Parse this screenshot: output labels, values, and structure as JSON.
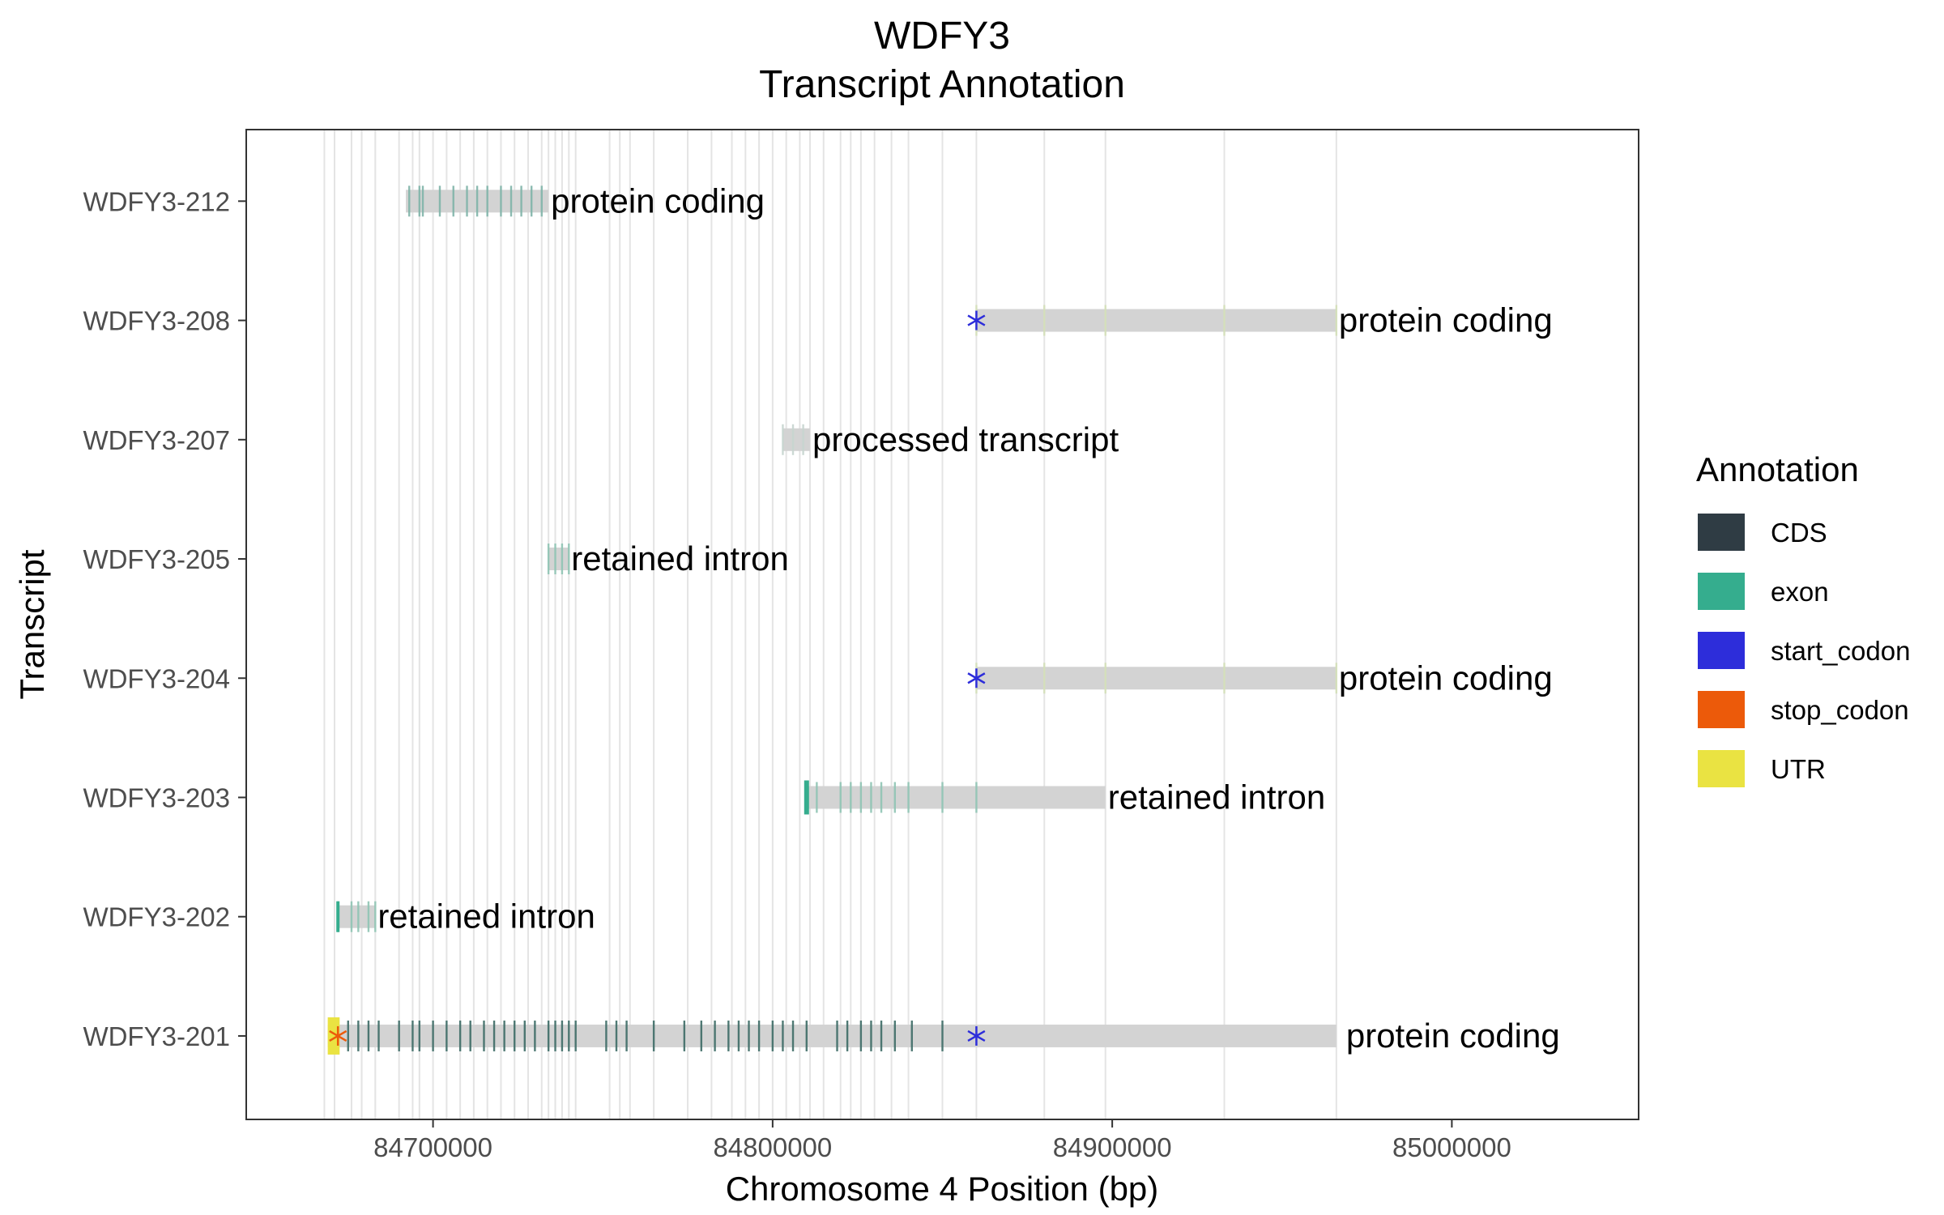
{
  "chart_data": {
    "type": "gene-track",
    "title": "WDFY3",
    "subtitle": "Transcript Annotation",
    "xlabel": "Chromosome 4 Position (bp)",
    "ylabel": "Transcript",
    "xlim": [
      84645000,
      85055000
    ],
    "xticks": [
      84700000,
      84800000,
      84900000,
      85000000
    ],
    "grid": "major-only",
    "legend": {
      "title": "Annotation",
      "placement": "right",
      "items": [
        {
          "label": "CDS",
          "color": "#2f3c44"
        },
        {
          "label": "exon",
          "color": "#35ad8e"
        },
        {
          "label": "start_codon",
          "color": "#2d2dda"
        },
        {
          "label": "stop_codon",
          "color": "#ec5a0a"
        },
        {
          "label": "UTR",
          "color": "#eae342"
        }
      ]
    },
    "background_exon_positions": [
      84668000,
      84671000,
      84676000,
      84679000,
      84683000,
      84690000,
      84694000,
      84696000,
      84700000,
      84704000,
      84708000,
      84712000,
      84716000,
      84720000,
      84724000,
      84728000,
      84732000,
      84734000,
      84736000,
      84738000,
      84740000,
      84742000,
      84752000,
      84755000,
      84758000,
      84765000,
      84775000,
      84782000,
      84788000,
      84792000,
      84796000,
      84800000,
      84804000,
      84808000,
      84811000,
      84815000,
      84820000,
      84823000,
      84826000,
      84830000,
      84835000,
      84840000,
      84850000,
      84860000,
      84880000,
      84898000,
      84933000,
      84966000
    ],
    "transcripts": [
      {
        "name": "WDFY3-212",
        "biotype": "protein coding",
        "start": 84692000,
        "end": 84734000,
        "exons": [
          84693000,
          84696000,
          84697000,
          84702000,
          84706000,
          84710000,
          84713000,
          84716000,
          84720000,
          84723000,
          84726000,
          84729000,
          84732000
        ],
        "exon_color": "#7fb4a8",
        "start_codon": null,
        "stop_codon": null,
        "utr": []
      },
      {
        "name": "WDFY3-208",
        "biotype": "protein coding",
        "start": 84860000,
        "end": 84966000,
        "exons": [
          84860000,
          84880000,
          84898000,
          84933000,
          84966000
        ],
        "exon_color": "#d4e0b8",
        "start_codon": 84860000,
        "stop_codon": null,
        "utr": []
      },
      {
        "name": "WDFY3-207",
        "biotype": "processed transcript",
        "start": 84803000,
        "end": 84811000,
        "exons": [
          84803000,
          84806000,
          84809000
        ],
        "exon_color": "#c6d5cf",
        "start_codon": null,
        "stop_codon": null,
        "utr": []
      },
      {
        "name": "WDFY3-205",
        "biotype": "retained intron",
        "start": 84734000,
        "end": 84740000,
        "exons": [
          84734000,
          84736000,
          84738000,
          84740000
        ],
        "exon_color": "#8fc4b4",
        "start_codon": null,
        "stop_codon": null,
        "utr": []
      },
      {
        "name": "WDFY3-204",
        "biotype": "protein coding",
        "start": 84860000,
        "end": 84966000,
        "exons": [
          84860000,
          84880000,
          84898000,
          84933000,
          84966000
        ],
        "exon_color": "#d4e0b8",
        "start_codon": 84860000,
        "stop_codon": null,
        "utr": []
      },
      {
        "name": "WDFY3-203",
        "biotype": "retained intron",
        "start": 84810000,
        "end": 84898000,
        "exons": [
          84810000,
          84813000,
          84820000,
          84823000,
          84826000,
          84829000,
          84832000,
          84836000,
          84840000,
          84850000,
          84860000
        ],
        "exon_color": "#8fc4b4",
        "start_codon": null,
        "stop_codon": null,
        "utr": []
      },
      {
        "name": "WDFY3-202",
        "biotype": "retained intron",
        "start": 84672000,
        "end": 84683000,
        "exons": [
          84672000,
          84676000,
          84678000,
          84681000,
          84683000
        ],
        "exon_color": "#8fc4b4",
        "start_codon": null,
        "stop_codon": null,
        "utr": []
      },
      {
        "name": "WDFY3-201",
        "biotype": "protein coding",
        "start": 84669000,
        "end": 84966000,
        "exons": [
          84675000,
          84678000,
          84681000,
          84684000,
          84690000,
          84694000,
          84696000,
          84700000,
          84704000,
          84708000,
          84711000,
          84715000,
          84718000,
          84721000,
          84724000,
          84727000,
          84730000,
          84734000,
          84736000,
          84738000,
          84740000,
          84742000,
          84751000,
          84754000,
          84757000,
          84765000,
          84774000,
          84779000,
          84783000,
          84787000,
          84790000,
          84793000,
          84796000,
          84800000,
          84803000,
          84806000,
          84810000,
          84819000,
          84822000,
          84826000,
          84829000,
          84832000,
          84836000,
          84841000,
          84850000
        ],
        "exon_color": "#3d6b66",
        "start_codon": 84860000,
        "stop_codon": 84672000,
        "utr": [
          [
            84669000,
            84672500
          ]
        ]
      }
    ]
  }
}
